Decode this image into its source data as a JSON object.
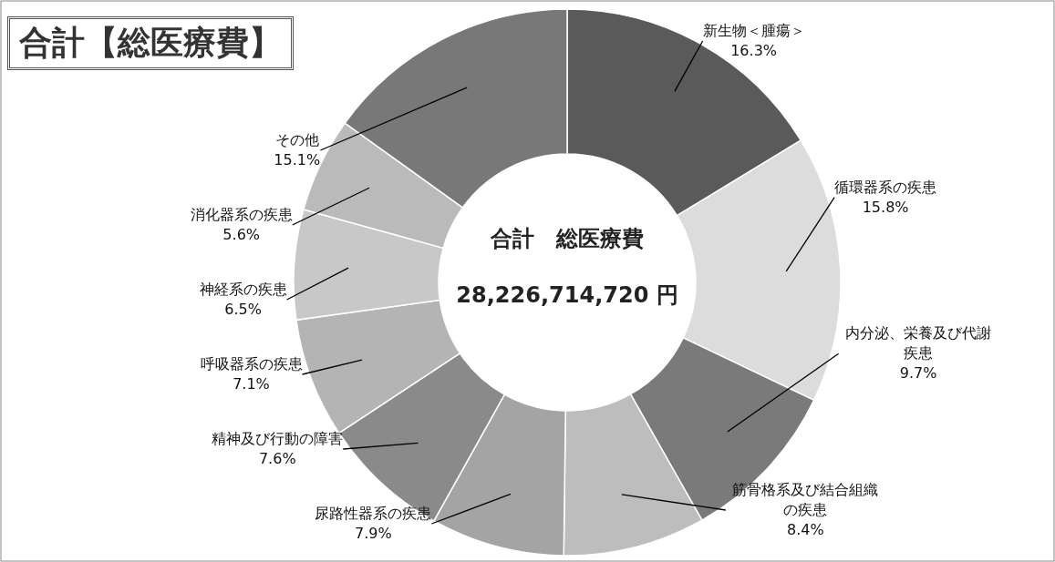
{
  "chart_data": {
    "type": "donut",
    "title": "合計【総医療費】",
    "categories": [
      "新生物＜腫瘍＞",
      "循環器系の疾患",
      "内分泌、栄養及び代謝疾患",
      "筋骨格系及び結合組織の疾患",
      "尿路性器系の疾患",
      "精神及び行動の障害",
      "呼吸器系の疾患",
      "神経系の疾患",
      "消化器系の疾患",
      "その他"
    ],
    "values": [
      16.3,
      15.8,
      9.7,
      8.4,
      7.9,
      7.6,
      7.1,
      6.5,
      5.6,
      15.1
    ],
    "colors": [
      "#5a5a5a",
      "#dcdcdc",
      "#7a7a7a",
      "#bdbdbd",
      "#a4a4a4",
      "#8a8a8a",
      "#b4b4b4",
      "#c8c8c8",
      "#bababa",
      "#787878"
    ],
    "value_labels": [
      "16.3%",
      "15.8%",
      "9.7%",
      "8.4%",
      "7.9%",
      "7.6%",
      "7.1%",
      "6.5%",
      "5.6%",
      "15.1%"
    ],
    "annotations": [
      "合計　総医療費",
      "28,226,714,720 円"
    ]
  }
}
